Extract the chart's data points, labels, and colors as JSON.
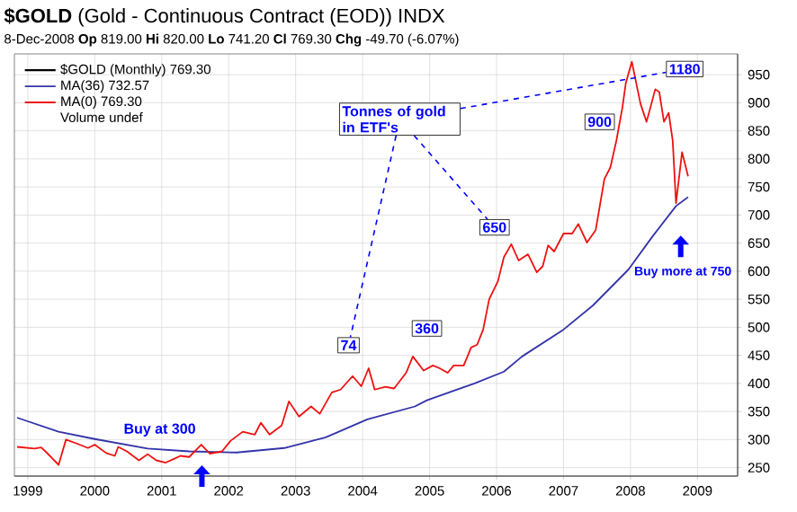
{
  "chart_data": {
    "type": "line",
    "title": "**$GOLD** (Gold - Continuous Contract (EOD)) INDX",
    "subtitle": "8-Dec-2008 **Op** 819.00 **Hi** 820.00 **Lo** 741.20 **Cl** 769.30 **Chg** -49.70 (-6.07%)",
    "series": [
      {
        "name": "MA(36) 732.57",
        "color": "#3333aa",
        "x": [
          1998.84,
          1999.46,
          2000.0,
          2000.79,
          2001.41,
          2002.12,
          2002.83,
          2003.45,
          2004.07,
          2004.78,
          2004.96,
          2005.67,
          2006.11,
          2006.38,
          2007.0,
          2007.44,
          2007.97,
          2008.33,
          2008.68,
          2008.86
        ],
        "values": [
          339,
          314,
          301,
          284,
          279,
          277,
          285,
          304,
          336,
          359,
          370,
          400,
          421,
          448,
          496,
          539,
          603,
          662,
          716,
          732
        ]
      },
      {
        "name": "MA(0) 769.30",
        "color": "#ee1111",
        "x": [
          1998.84,
          1999.1,
          1999.2,
          1999.28,
          1999.46,
          1999.57,
          1999.73,
          1999.9,
          2000.0,
          2000.17,
          2000.3,
          2000.35,
          2000.48,
          2000.66,
          2000.79,
          2000.92,
          2001.06,
          2001.19,
          2001.28,
          2001.41,
          2001.59,
          2001.72,
          2001.9,
          2002.03,
          2002.21,
          2002.39,
          2002.48,
          2002.61,
          2002.79,
          2002.9,
          2003.05,
          2003.23,
          2003.36,
          2003.54,
          2003.67,
          2003.85,
          2003.98,
          2004.09,
          2004.18,
          2004.34,
          2004.47,
          2004.65,
          2004.75,
          2004.91,
          2005.05,
          2005.15,
          2005.27,
          2005.36,
          2005.51,
          2005.62,
          2005.71,
          2005.8,
          2005.89,
          2006.02,
          2006.11,
          2006.22,
          2006.33,
          2006.47,
          2006.6,
          2006.69,
          2006.77,
          2006.86,
          2007.0,
          2007.13,
          2007.22,
          2007.35,
          2007.48,
          2007.61,
          2007.7,
          2007.79,
          2007.88,
          2007.93,
          2008.02,
          2008.15,
          2008.24,
          2008.37,
          2008.43,
          2008.5,
          2008.57,
          2008.63,
          2008.68,
          2008.77,
          2008.86
        ],
        "values": [
          287,
          284,
          286,
          277,
          255,
          300,
          293,
          285,
          291,
          276,
          271,
          287,
          279,
          263,
          274,
          263,
          259,
          266,
          271,
          269,
          291,
          275,
          279,
          298,
          314,
          309,
          330,
          309,
          325,
          368,
          341,
          359,
          346,
          384,
          389,
          413,
          395,
          427,
          389,
          394,
          391,
          419,
          448,
          423,
          432,
          427,
          419,
          432,
          432,
          464,
          469,
          496,
          550,
          582,
          625,
          648,
          619,
          630,
          598,
          609,
          646,
          635,
          667,
          667,
          684,
          651,
          673,
          764,
          785,
          833,
          892,
          935,
          973,
          898,
          866,
          924,
          919,
          866,
          882,
          833,
          721,
          812,
          769
        ]
      }
    ],
    "annotations": [
      "Tonnes of gold in ETF's",
      {
        "text": "74",
        "x": 2003.79,
        "y": 468
      },
      {
        "text": "360",
        "x": 2004.96,
        "y": 498
      },
      {
        "text": "650",
        "x": 2005.97,
        "y": 678
      },
      {
        "text": "900",
        "x": 2007.54,
        "y": 866
      },
      {
        "text": "1180",
        "x": 2008.81,
        "y": 960
      },
      "Buy at 300",
      "Buy more at 750",
      "$GOLD (Monthly) 769.30",
      "Volume undef"
    ],
    "xlim": [
      1998.8,
      2009.6
    ],
    "xticks": [
      1999,
      2000,
      2001,
      2002,
      2003,
      2004,
      2005,
      2006,
      2007,
      2008,
      2009
    ],
    "ylim": [
      235,
      987
    ],
    "yticks": [
      250,
      300,
      350,
      400,
      450,
      500,
      550,
      600,
      650,
      700,
      750,
      800,
      850,
      900,
      950
    ],
    "grid": true,
    "legend": "top left",
    "line_style": "solid",
    "marker": "none"
  }
}
